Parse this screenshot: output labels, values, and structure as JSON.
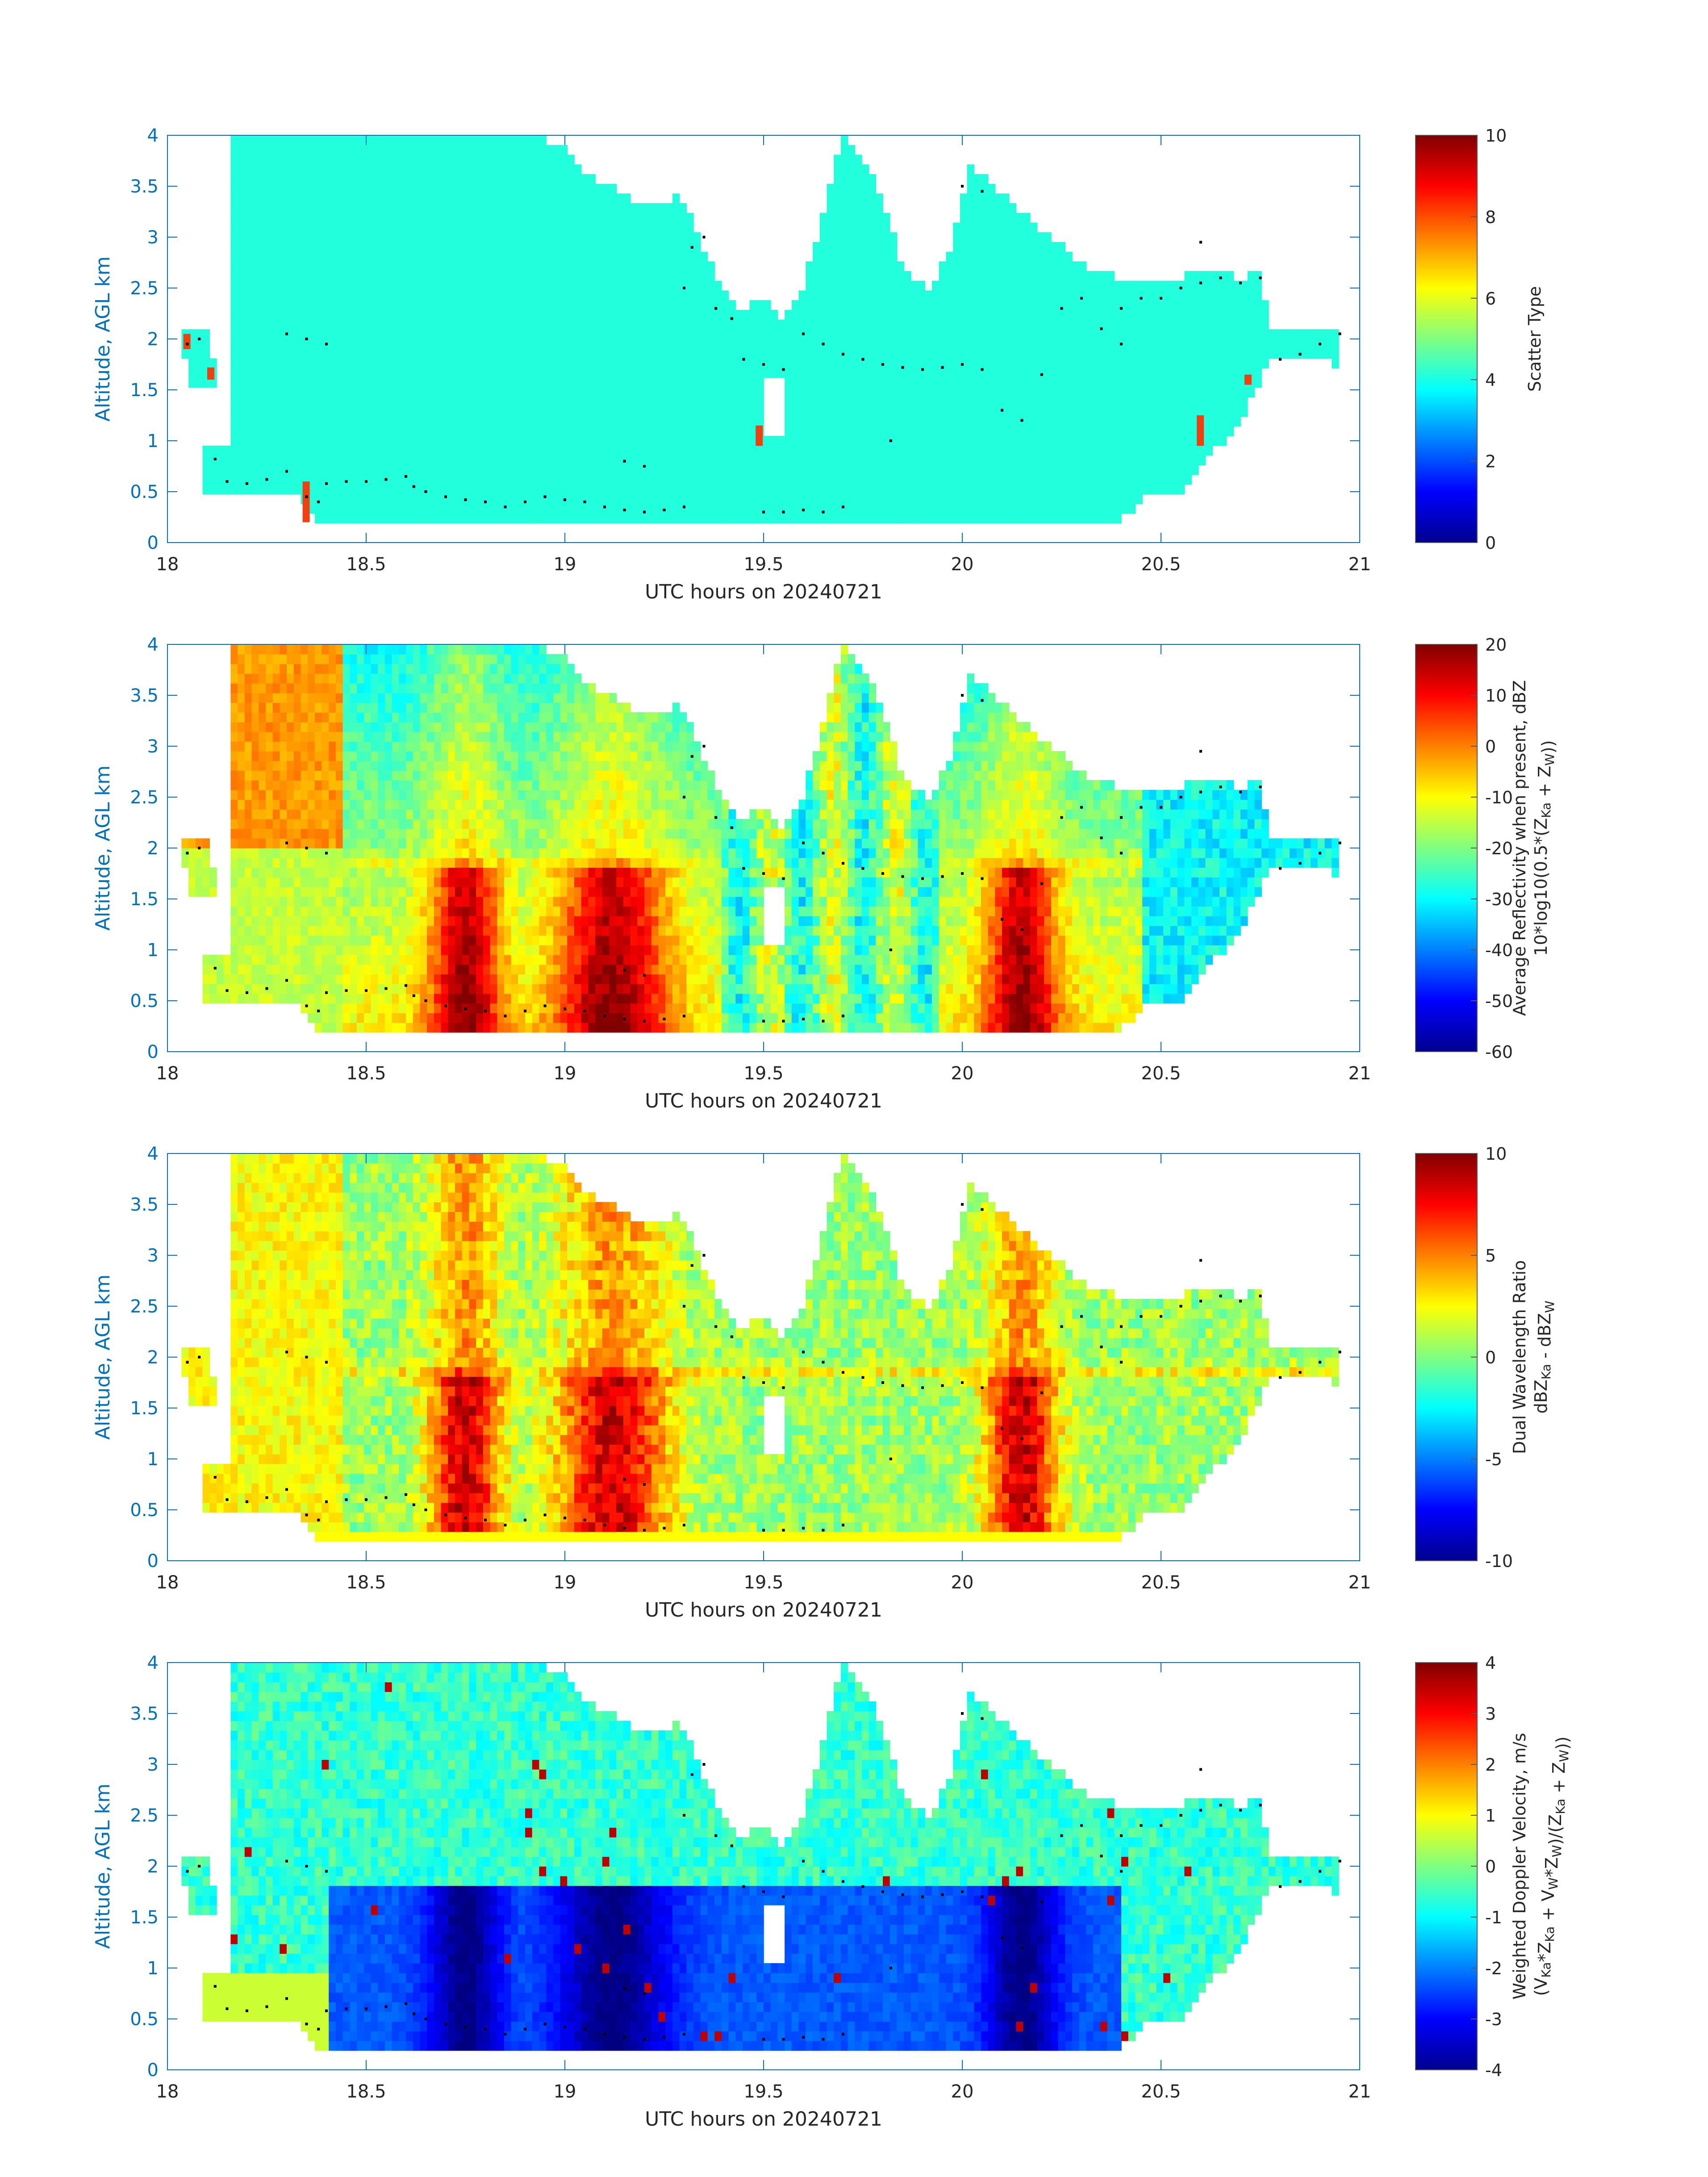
{
  "figure": {
    "panels": [
      {
        "ylabel": "Altitude, AGL km",
        "xlabel": "UTC hours on 20240721",
        "colorbar_label_lines": [
          [
            "Scatter Type"
          ]
        ],
        "colorbar_ticks": [
          "10",
          "8",
          "6",
          "4",
          "2",
          "0"
        ],
        "colormap": "jet"
      },
      {
        "ylabel": "Altitude, AGL km",
        "xlabel": "UTC hours on 20240721",
        "colorbar_label_lines": [
          [
            "Average Reflectivity when present, dBZ"
          ],
          [
            "10*log10(0.5*(Z",
            {
              "sub": "Ka"
            },
            " + Z",
            {
              "sub": "W"
            },
            "))"
          ]
        ],
        "colorbar_ticks": [
          "20",
          "10",
          "0",
          "-10",
          "-20",
          "-30",
          "-40",
          "-50",
          "-60"
        ],
        "colormap": "jet"
      },
      {
        "ylabel": "Altitude, AGL km",
        "xlabel": "UTC hours on 20240721",
        "colorbar_label_lines": [
          [
            "Dual Wavelength Ratio"
          ],
          [
            "dBZ",
            {
              "sub": "Ka"
            },
            " - dBZ",
            {
              "sub": "W"
            }
          ]
        ],
        "colorbar_ticks": [
          "10",
          "5",
          "0",
          "-5",
          "-10"
        ],
        "colormap": "jet"
      },
      {
        "ylabel": "Altitude, AGL km",
        "xlabel": "UTC hours on 20240721",
        "colorbar_label_lines": [
          [
            "Weighted Doppler Velocity, m/s"
          ],
          [
            "(V",
            {
              "sub": "Ka"
            },
            "*Z",
            {
              "sub": "Ka"
            },
            " + V",
            {
              "sub": "W"
            },
            "*Z",
            {
              "sub": "W"
            },
            ")/(Z",
            {
              "sub": "Ka"
            },
            " + Z",
            {
              "sub": "W"
            },
            "))"
          ]
        ],
        "colorbar_ticks": [
          "4",
          "3",
          "2",
          "1",
          "0",
          "-1",
          "-2",
          "-3",
          "-4"
        ],
        "colormap": "jet"
      }
    ],
    "colors": {
      "axis": "#0072BD",
      "frame": "#5a5a5a",
      "scatter_fill": "#22FFDD",
      "scatter_spot": "#F04010",
      "dots": "#000000"
    }
  },
  "chart_data": [
    {
      "type": "heatmap",
      "xlabel": "UTC hours on 20240721",
      "ylabel": "Altitude, AGL km",
      "xlim": [
        18,
        21
      ],
      "ylim": [
        0,
        4
      ],
      "xticks": [
        18,
        18.5,
        19,
        19.5,
        20,
        20.5,
        21
      ],
      "xtick_labels": [
        "18",
        "18.5",
        "19",
        "19.5",
        "20",
        "20.5",
        "21"
      ],
      "yticks": [
        0,
        0.5,
        1,
        1.5,
        2,
        2.5,
        3,
        3.5,
        4
      ],
      "ytick_labels": [
        "0",
        "0.5",
        "1",
        "1.5",
        "2",
        "2.5",
        "3",
        "3.5",
        "4"
      ],
      "colorbar": {
        "label": "Scatter Type",
        "range": [
          0,
          10
        ],
        "ticks": [
          0,
          2,
          4,
          6,
          8,
          10
        ]
      },
      "dominant_value": 4,
      "isolated_values": [
        {
          "value": 8.5,
          "x_hours": [
            18.04,
            18.1,
            18.34,
            19.48,
            20.59,
            20.71
          ]
        }
      ]
    },
    {
      "type": "heatmap",
      "xlabel": "UTC hours on 20240721",
      "ylabel": "Altitude, AGL km",
      "xlim": [
        18,
        21
      ],
      "ylim": [
        0,
        4
      ],
      "xticks": [
        18,
        18.5,
        19,
        19.5,
        20,
        20.5,
        21
      ],
      "xtick_labels": [
        "18",
        "18.5",
        "19",
        "19.5",
        "20",
        "20.5",
        "21"
      ],
      "yticks": [
        0,
        0.5,
        1,
        1.5,
        2,
        2.5,
        3,
        3.5,
        4
      ],
      "ytick_labels": [
        "0",
        "0.5",
        "1",
        "1.5",
        "2",
        "2.5",
        "3",
        "3.5",
        "4"
      ],
      "colorbar": {
        "label": "Average Reflectivity when present, dBZ 10*log10(0.5*(Z_Ka + Z_W))",
        "range": [
          -60,
          20
        ],
        "ticks": [
          -60,
          -50,
          -40,
          -30,
          -20,
          -10,
          0,
          10,
          20
        ]
      },
      "core_maxima": [
        {
          "x_hour": 18.75,
          "dBZ": 15
        },
        {
          "x_hour": 19.1,
          "dBZ": 15
        },
        {
          "x_hour": 20.15,
          "dBZ": 12
        }
      ]
    },
    {
      "type": "heatmap",
      "xlabel": "UTC hours on 20240721",
      "ylabel": "Altitude, AGL km",
      "xlim": [
        18,
        21
      ],
      "ylim": [
        0,
        4
      ],
      "xticks": [
        18,
        18.5,
        19,
        19.5,
        20,
        20.5,
        21
      ],
      "xtick_labels": [
        "18",
        "18.5",
        "19",
        "19.5",
        "20",
        "20.5",
        "21"
      ],
      "yticks": [
        0,
        0.5,
        1,
        1.5,
        2,
        2.5,
        3,
        3.5,
        4
      ],
      "ytick_labels": [
        "0",
        "0.5",
        "1",
        "1.5",
        "2",
        "2.5",
        "3",
        "3.5",
        "4"
      ],
      "colorbar": {
        "label": "Dual Wavelength Ratio dBZ_Ka - dBZ_W",
        "range": [
          -10,
          10
        ],
        "ticks": [
          -10,
          -5,
          0,
          5,
          10
        ]
      },
      "core_maxima": [
        {
          "x_hour": 18.75,
          "dB": 9
        },
        {
          "x_hour": 19.1,
          "dB": 10
        },
        {
          "x_hour": 20.15,
          "dB": 8
        }
      ]
    },
    {
      "type": "heatmap",
      "xlabel": "UTC hours on 20240721",
      "ylabel": "Altitude, AGL km",
      "xlim": [
        18,
        21
      ],
      "ylim": [
        0,
        4
      ],
      "xticks": [
        18,
        18.5,
        19,
        19.5,
        20,
        20.5,
        21
      ],
      "xtick_labels": [
        "18",
        "18.5",
        "19",
        "19.5",
        "20",
        "20.5",
        "21"
      ],
      "yticks": [
        0,
        0.5,
        1,
        1.5,
        2,
        2.5,
        3,
        3.5,
        4
      ],
      "ytick_labels": [
        "0",
        "0.5",
        "1",
        "1.5",
        "2",
        "2.5",
        "3",
        "3.5",
        "4"
      ],
      "colorbar": {
        "label": "Weighted Doppler Velocity, m/s (V_Ka*Z_Ka + V_W*Z_W)/(Z_Ka + Z_W))",
        "range": [
          -4,
          4
        ],
        "ticks": [
          -4,
          -3,
          -2,
          -1,
          0,
          1,
          2,
          3,
          4
        ]
      },
      "below_level_km": 1.85,
      "core_minima": [
        {
          "x_hour": 18.75,
          "m_s": -4
        },
        {
          "x_hour": 19.1,
          "m_s": -4
        },
        {
          "x_hour": 20.15,
          "m_s": -4
        }
      ]
    }
  ],
  "overlay_dots": [
    [
      18.05,
      1.95
    ],
    [
      18.08,
      2.0
    ],
    [
      18.12,
      0.82
    ],
    [
      18.15,
      0.6
    ],
    [
      18.2,
      0.58
    ],
    [
      18.25,
      0.62
    ],
    [
      18.3,
      0.7
    ],
    [
      18.35,
      0.45
    ],
    [
      18.38,
      0.4
    ],
    [
      18.4,
      0.58
    ],
    [
      18.45,
      0.6
    ],
    [
      18.5,
      0.6
    ],
    [
      18.55,
      0.62
    ],
    [
      18.6,
      0.65
    ],
    [
      18.62,
      0.55
    ],
    [
      18.65,
      0.5
    ],
    [
      18.7,
      0.45
    ],
    [
      18.75,
      0.42
    ],
    [
      18.8,
      0.4
    ],
    [
      18.85,
      0.35
    ],
    [
      18.9,
      0.4
    ],
    [
      18.95,
      0.45
    ],
    [
      19.0,
      0.42
    ],
    [
      19.05,
      0.4
    ],
    [
      19.1,
      0.35
    ],
    [
      19.15,
      0.32
    ],
    [
      19.2,
      0.3
    ],
    [
      19.25,
      0.32
    ],
    [
      19.3,
      0.35
    ],
    [
      18.3,
      2.05
    ],
    [
      18.35,
      2.0
    ],
    [
      18.4,
      1.95
    ],
    [
      19.15,
      0.8
    ],
    [
      19.2,
      0.75
    ],
    [
      19.3,
      2.5
    ],
    [
      19.32,
      2.9
    ],
    [
      19.35,
      3.0
    ],
    [
      19.38,
      2.3
    ],
    [
      19.42,
      2.2
    ],
    [
      19.45,
      1.8
    ],
    [
      19.5,
      1.75
    ],
    [
      19.55,
      1.7
    ],
    [
      19.6,
      2.05
    ],
    [
      19.65,
      1.95
    ],
    [
      19.7,
      1.85
    ],
    [
      19.75,
      1.8
    ],
    [
      19.8,
      1.75
    ],
    [
      19.85,
      1.72
    ],
    [
      19.9,
      1.7
    ],
    [
      19.95,
      1.72
    ],
    [
      20.0,
      1.75
    ],
    [
      20.05,
      1.7
    ],
    [
      20.1,
      1.3
    ],
    [
      20.15,
      1.2
    ],
    [
      20.2,
      1.65
    ],
    [
      20.25,
      2.3
    ],
    [
      20.3,
      2.4
    ],
    [
      20.35,
      2.1
    ],
    [
      20.4,
      2.3
    ],
    [
      20.45,
      2.4
    ],
    [
      20.5,
      2.4
    ],
    [
      20.55,
      2.5
    ],
    [
      20.6,
      2.55
    ],
    [
      20.65,
      2.6
    ],
    [
      20.7,
      2.55
    ],
    [
      20.75,
      2.6
    ],
    [
      20.8,
      1.8
    ],
    [
      20.85,
      1.85
    ],
    [
      20.9,
      1.95
    ],
    [
      20.95,
      2.05
    ],
    [
      19.5,
      0.3
    ],
    [
      19.55,
      0.3
    ],
    [
      19.6,
      0.32
    ],
    [
      19.65,
      0.3
    ],
    [
      19.7,
      0.35
    ],
    [
      19.82,
      1.0
    ],
    [
      20.0,
      3.5
    ],
    [
      20.05,
      3.45
    ],
    [
      20.6,
      2.95
    ],
    [
      20.4,
      1.95
    ]
  ]
}
